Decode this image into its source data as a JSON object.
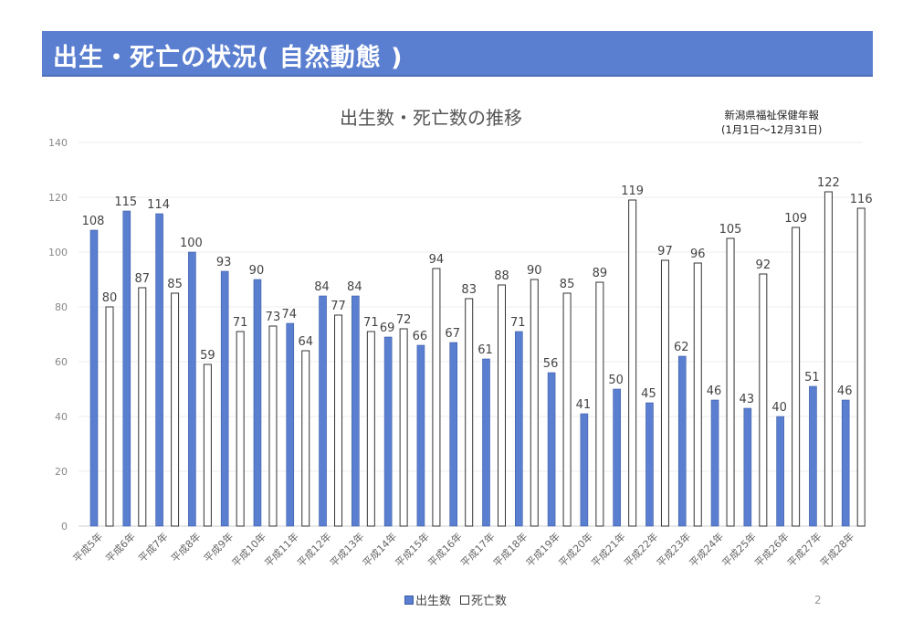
{
  "banner": {
    "title": "出生・死亡の状況( 自然動態 )"
  },
  "source": {
    "line1": "新潟県福祉保健年報",
    "line2": "(1月1日～12月31日)"
  },
  "page_number": "2",
  "colors": {
    "births": "#5b7fd0",
    "births_stroke": "#3a5aa6",
    "deaths": "#ffffff",
    "deaths_stroke": "#333333",
    "banner": "#5b7fd0"
  },
  "chart_data": {
    "type": "bar",
    "title": "出生数・死亡数の推移",
    "xlabel": "",
    "ylabel": "",
    "ylim": [
      0,
      140
    ],
    "yticks": [
      0,
      20,
      40,
      60,
      80,
      100,
      120,
      140
    ],
    "grid": true,
    "legend_position": "bottom",
    "categories": [
      "平成5年",
      "平成6年",
      "平成7年",
      "平成8年",
      "平成9年",
      "平成10年",
      "平成11年",
      "平成12年",
      "平成13年",
      "平成14年",
      "平成15年",
      "平成16年",
      "平成17年",
      "平成18年",
      "平成19年",
      "平成20年",
      "平成21年",
      "平成22年",
      "平成23年",
      "平成24年",
      "平成25年",
      "平成26年",
      "平成27年",
      "平成28年"
    ],
    "series": [
      {
        "name": "出生数",
        "values": [
          108,
          115,
          114,
          100,
          93,
          90,
          74,
          84,
          84,
          69,
          66,
          67,
          61,
          71,
          56,
          41,
          50,
          45,
          62,
          46,
          43,
          40,
          51,
          46
        ]
      },
      {
        "name": "死亡数",
        "values": [
          80,
          87,
          85,
          59,
          71,
          73,
          64,
          77,
          71,
          72,
          94,
          83,
          88,
          90,
          85,
          89,
          119,
          97,
          96,
          105,
          92,
          109,
          122,
          116
        ]
      }
    ]
  }
}
